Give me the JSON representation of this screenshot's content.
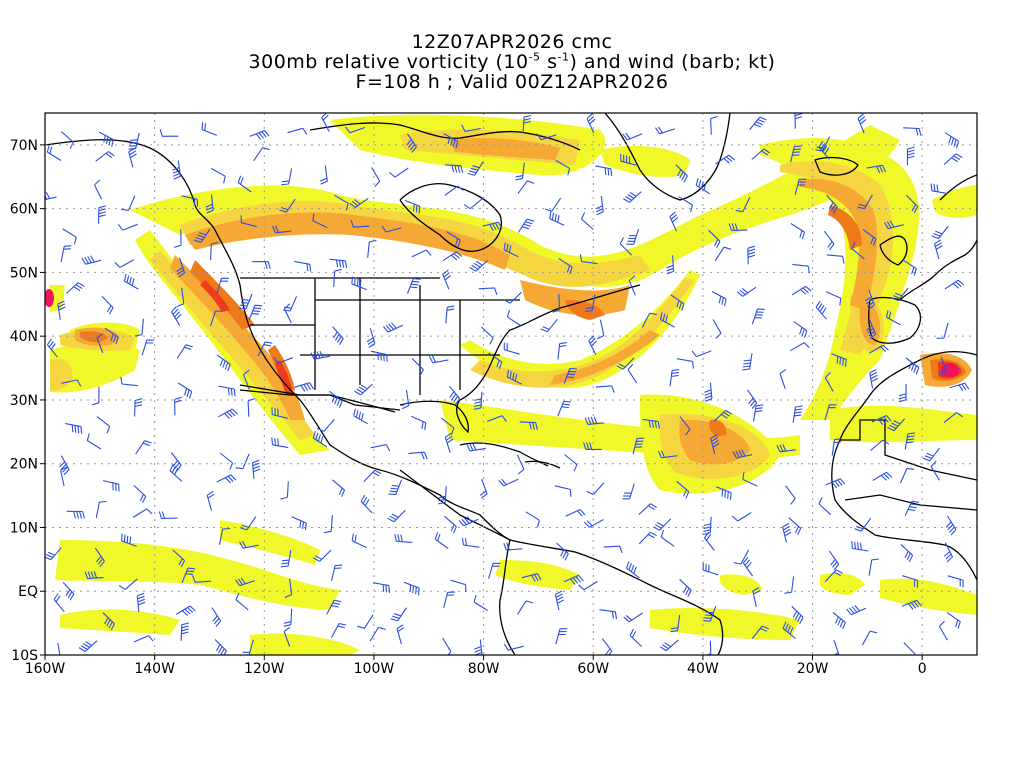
{
  "title": {
    "line1": "12Z07APR2026 cmc",
    "line2_prefix": "300mb relative vorticity (10",
    "line2_exp1": "-5",
    "line2_mid": " s",
    "line2_exp2": "-1",
    "line2_suffix": ") and wind (barb; kt)",
    "line3": "F=108 h ; Valid 00Z12APR2026"
  },
  "axes": {
    "lon_range": [
      -160,
      10
    ],
    "lat_range": [
      -10,
      75
    ],
    "x_ticks": [
      {
        "lon": -160,
        "label": "160W"
      },
      {
        "lon": -140,
        "label": "140W"
      },
      {
        "lon": -120,
        "label": "120W"
      },
      {
        "lon": -100,
        "label": "100W"
      },
      {
        "lon": -80,
        "label": "80W"
      },
      {
        "lon": -60,
        "label": "60W"
      },
      {
        "lon": -40,
        "label": "40W"
      },
      {
        "lon": -20,
        "label": "20W"
      },
      {
        "lon": 0,
        "label": "0"
      }
    ],
    "y_ticks": [
      {
        "lat": 70,
        "label": "70N"
      },
      {
        "lat": 60,
        "label": "60N"
      },
      {
        "lat": 50,
        "label": "50N"
      },
      {
        "lat": 40,
        "label": "40N"
      },
      {
        "lat": 30,
        "label": "30N"
      },
      {
        "lat": 20,
        "label": "20N"
      },
      {
        "lat": 10,
        "label": "10N"
      },
      {
        "lat": 0,
        "label": "EQ"
      },
      {
        "lat": -10,
        "label": "10S"
      }
    ]
  },
  "colors": {
    "level_1": "#f0f82a",
    "level_2": "#f6d640",
    "level_3": "#f5a833",
    "level_4": "#ee7a1c",
    "level_5": "#ee3c1c",
    "level_6": "#f0145c",
    "barb": "#2a4fe0",
    "coast": "#000000",
    "grid": "#9a9a9a"
  }
}
